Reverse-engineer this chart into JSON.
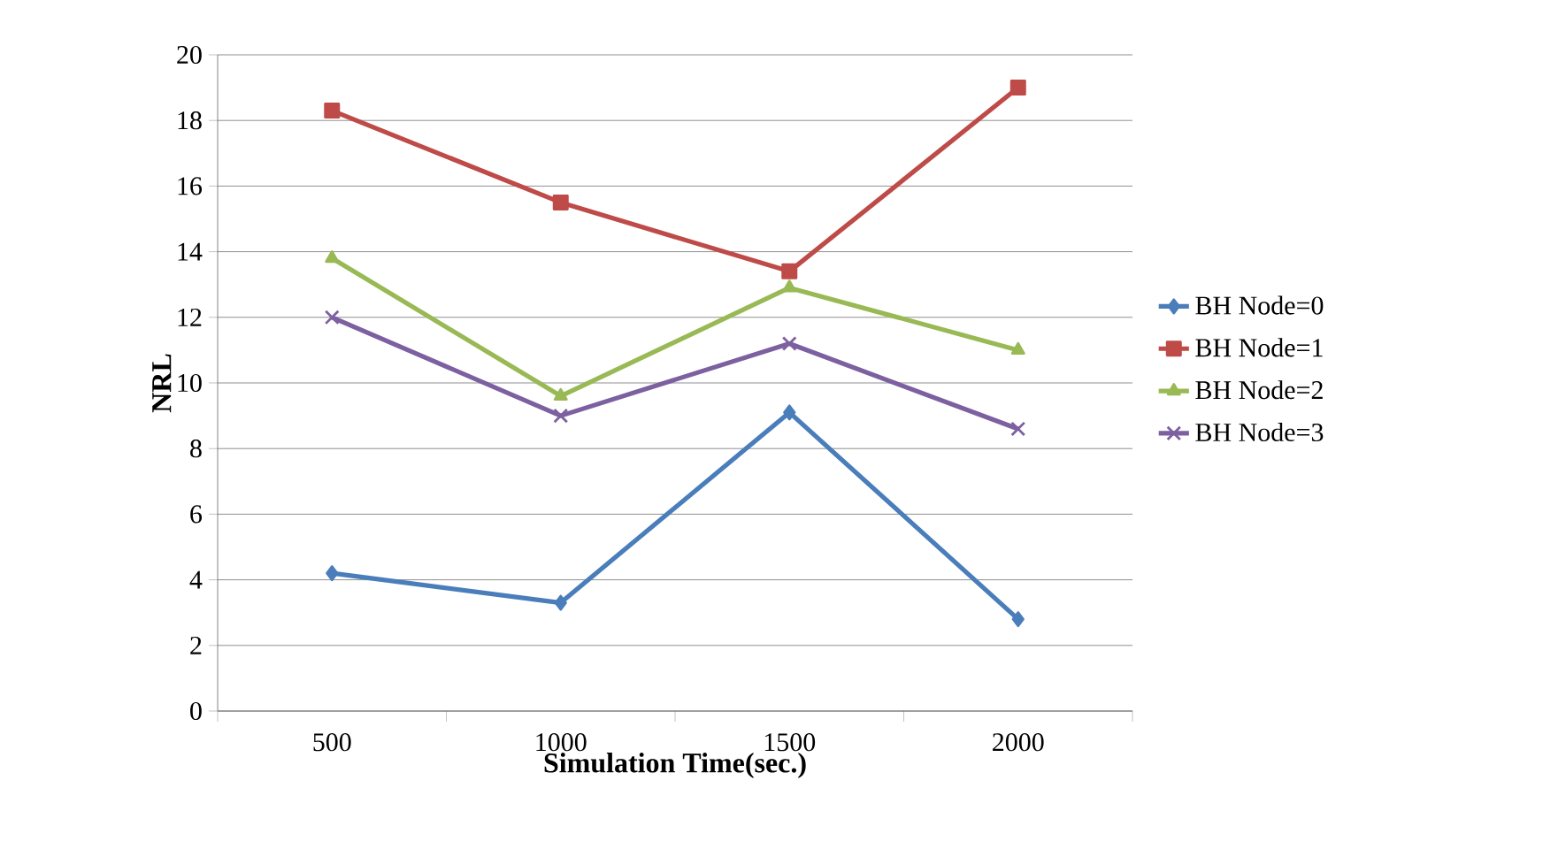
{
  "chart_data": {
    "type": "line",
    "xlabel": "Simulation Time(sec.)",
    "ylabel": "NRL",
    "categories": [
      "500",
      "1000",
      "1500",
      "2000"
    ],
    "series": [
      {
        "name": "BH Node=0",
        "color": "#4a7ebb",
        "marker": "diamond",
        "values": [
          4.2,
          3.3,
          9.1,
          2.8
        ]
      },
      {
        "name": "BH Node=1",
        "color": "#be4b48",
        "marker": "square",
        "values": [
          18.3,
          15.5,
          13.4,
          19
        ]
      },
      {
        "name": "BH Node=2",
        "color": "#98b954",
        "marker": "triangle",
        "values": [
          13.8,
          9.6,
          12.9,
          11
        ]
      },
      {
        "name": "BH Node=3",
        "color": "#7d60a0",
        "marker": "cross",
        "values": [
          12,
          9,
          11.2,
          8.6
        ]
      }
    ],
    "ylim": [
      0,
      20
    ],
    "yticks": [
      0,
      2,
      4,
      6,
      8,
      10,
      12,
      14,
      16,
      18,
      20
    ],
    "grid": "y",
    "legend": "right",
    "line_style": "solid"
  }
}
